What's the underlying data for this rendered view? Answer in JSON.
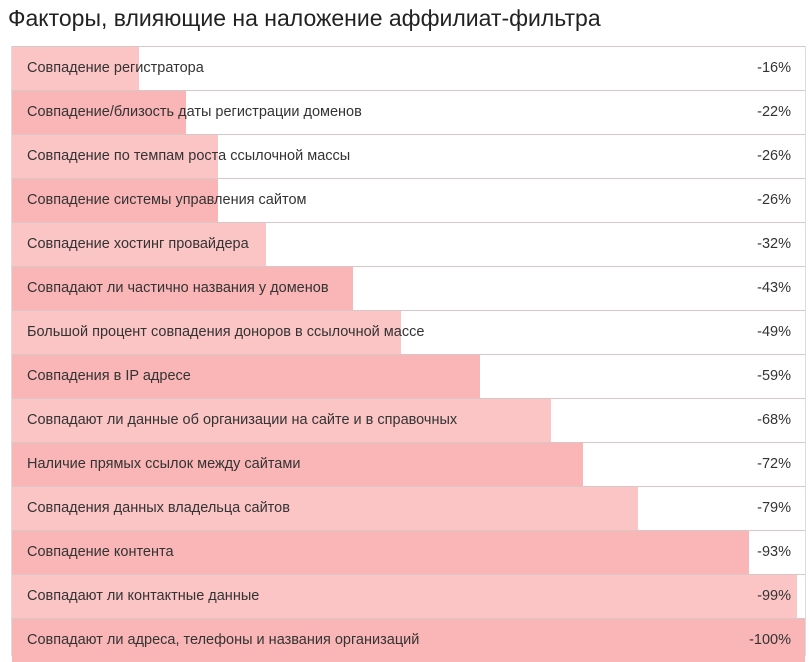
{
  "title": "Факторы, влияющие на наложение аффилиат-фильтра",
  "colors": {
    "bar_light": "#fcc5c5",
    "bar_dark": "#fab6b6"
  },
  "chart_data": {
    "type": "bar",
    "orientation": "horizontal",
    "title": "Факторы, влияющие на наложение аффилиат-фильтра",
    "xlim": [
      0,
      100
    ],
    "grid": false,
    "categories": [
      "Совпадение регистратора",
      "Совпадение/близость даты регистрации доменов",
      "Совпадение по темпам роста ссылочной массы",
      "Совпадение системы управления сайтом",
      "Совпадение хостинг провайдера",
      "Совпадают ли частично названия у доменов",
      "Большой процент совпадения доноров в ссылочной массе",
      "Совпадения в IP адресе",
      "Совпадают ли данные об организации на сайте и в справочных",
      "Наличие прямых ссылок между сайтами",
      "Совпадения данных владельца сайтов",
      "Совпадение контента",
      "Совпадают ли контактные данные",
      "Совпадают ли адреса, телефоны и названия организаций"
    ],
    "values": [
      16,
      22,
      26,
      26,
      32,
      43,
      49,
      59,
      68,
      72,
      79,
      93,
      99,
      100
    ],
    "value_labels": [
      "-16%",
      "-22%",
      "-26%",
      "-26%",
      "-32%",
      "-43%",
      "-49%",
      "-59%",
      "-68%",
      "-72%",
      "-79%",
      "-93%",
      "-99%",
      "-100%"
    ]
  }
}
